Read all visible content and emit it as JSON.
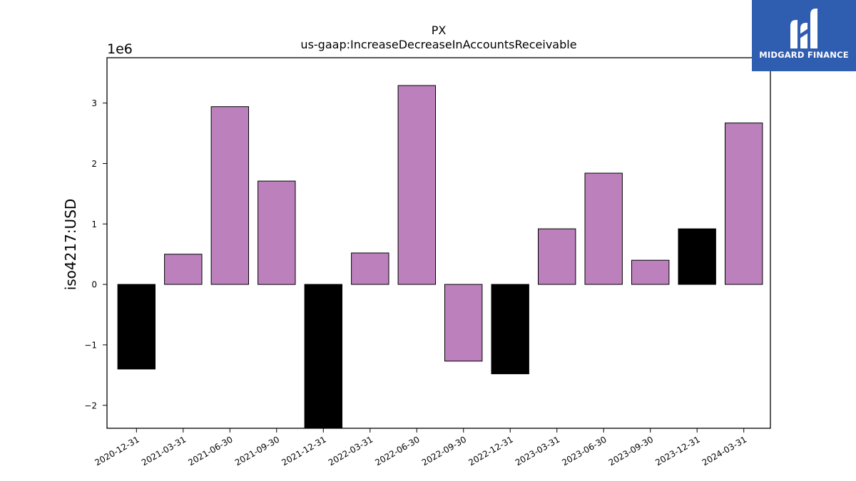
{
  "brand": {
    "name": "MIDGARD FINANCE",
    "bg_color": "#2f5db0",
    "icon": "midgard-m-logo-icon"
  },
  "chart_data": {
    "type": "bar",
    "title": "PX",
    "subtitle": "us-gaap:IncreaseDecreaseInAccountsReceivable",
    "xlabel": "",
    "ylabel": "iso4217:USD",
    "y_scale_label": "1e6",
    "ylim": [
      -2.38,
      3.75
    ],
    "y_ticks": [
      -2,
      -1,
      0,
      1,
      2,
      3
    ],
    "y_tick_labels": [
      "−2",
      "−1",
      "0",
      "1",
      "2",
      "3"
    ],
    "grid": false,
    "legend": "none",
    "categories": [
      "2020-12-31",
      "2021-03-31",
      "2021-06-30",
      "2021-09-30",
      "2021-12-31",
      "2022-03-31",
      "2022-06-30",
      "2022-09-30",
      "2022-12-31",
      "2023-03-31",
      "2023-06-30",
      "2023-09-30",
      "2023-12-31",
      "2024-03-31"
    ],
    "values": [
      -1.4,
      0.5,
      2.94,
      1.71,
      -2.45,
      0.52,
      3.29,
      -1.27,
      -1.48,
      0.92,
      1.84,
      0.4,
      0.92,
      2.67
    ],
    "bar_colors": [
      "#000000",
      "#bc80bd",
      "#bc80bd",
      "#bc80bd",
      "#000000",
      "#bc80bd",
      "#bc80bd",
      "#bc80bd",
      "#000000",
      "#bc80bd",
      "#bc80bd",
      "#bc80bd",
      "#000000",
      "#bc80bd"
    ]
  }
}
